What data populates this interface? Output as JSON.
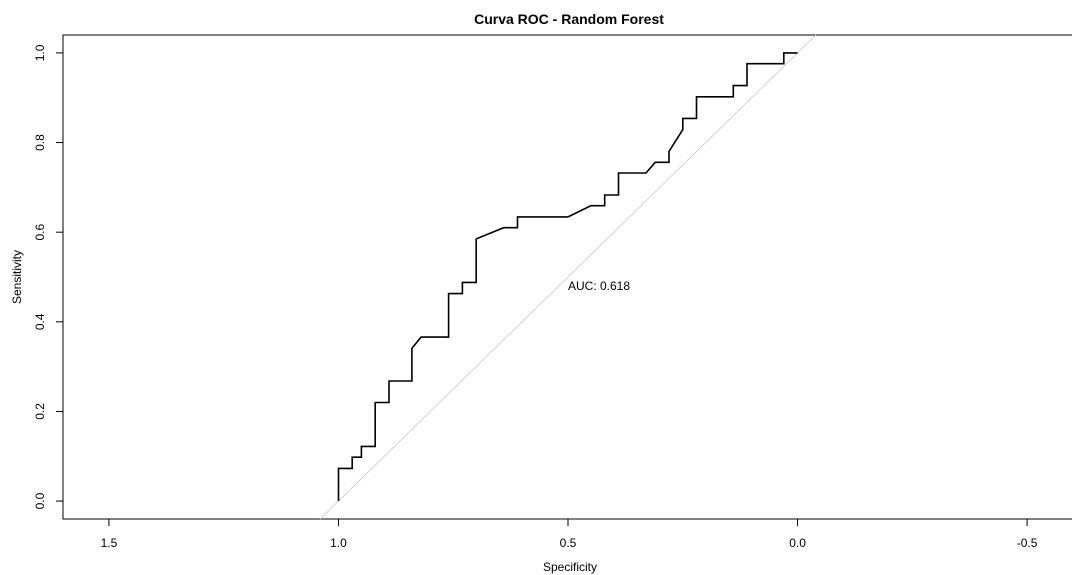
{
  "chart_data": {
    "type": "line",
    "title": "Curva ROC - Random Forest",
    "xlabel": "Specificity",
    "ylabel": "Sensitivity",
    "xlim": [
      1.6,
      -0.6
    ],
    "ylim": [
      -0.04,
      1.04
    ],
    "x_reversed": true,
    "grid": false,
    "legend": "none",
    "x_ticks": [
      {
        "value": 1.5,
        "label": "1.5"
      },
      {
        "value": 1.0,
        "label": "1.0"
      },
      {
        "value": 0.5,
        "label": "0.5"
      },
      {
        "value": 0.0,
        "label": "0.0"
      },
      {
        "value": -0.5,
        "label": "-0.5"
      }
    ],
    "y_ticks": [
      {
        "value": 0.0,
        "label": "0.0"
      },
      {
        "value": 0.2,
        "label": "0.2"
      },
      {
        "value": 0.4,
        "label": "0.4"
      },
      {
        "value": 0.6,
        "label": "0.6"
      },
      {
        "value": 0.8,
        "label": "0.8"
      },
      {
        "value": 1.0,
        "label": "1.0"
      }
    ],
    "annotations": [
      {
        "text": "AUC: 0.618",
        "x": 0.5,
        "y": 0.48
      }
    ],
    "reference_line": {
      "from": [
        1.04,
        -0.04
      ],
      "to": [
        -0.04,
        1.04
      ],
      "color": "#d3d3d3"
    },
    "series": [
      {
        "color": "#000000",
        "x": [
          1.0,
          1.0,
          0.97,
          0.97,
          0.95,
          0.95,
          0.92,
          0.92,
          0.89,
          0.89,
          0.84,
          0.84,
          0.82,
          0.76,
          0.76,
          0.73,
          0.73,
          0.7,
          0.7,
          0.64,
          0.61,
          0.61,
          0.5,
          0.45,
          0.42,
          0.42,
          0.39,
          0.39,
          0.33,
          0.31,
          0.28,
          0.28,
          0.25,
          0.25,
          0.22,
          0.22,
          0.14,
          0.14,
          0.11,
          0.11,
          0.03,
          0.03,
          0.0
        ],
        "y": [
          0.0,
          0.073,
          0.073,
          0.098,
          0.098,
          0.122,
          0.122,
          0.22,
          0.22,
          0.268,
          0.268,
          0.341,
          0.366,
          0.366,
          0.463,
          0.463,
          0.488,
          0.488,
          0.585,
          0.61,
          0.61,
          0.634,
          0.634,
          0.659,
          0.659,
          0.683,
          0.683,
          0.732,
          0.732,
          0.756,
          0.756,
          0.78,
          0.829,
          0.854,
          0.854,
          0.902,
          0.902,
          0.927,
          0.927,
          0.976,
          0.976,
          1.0,
          1.0
        ]
      }
    ]
  }
}
